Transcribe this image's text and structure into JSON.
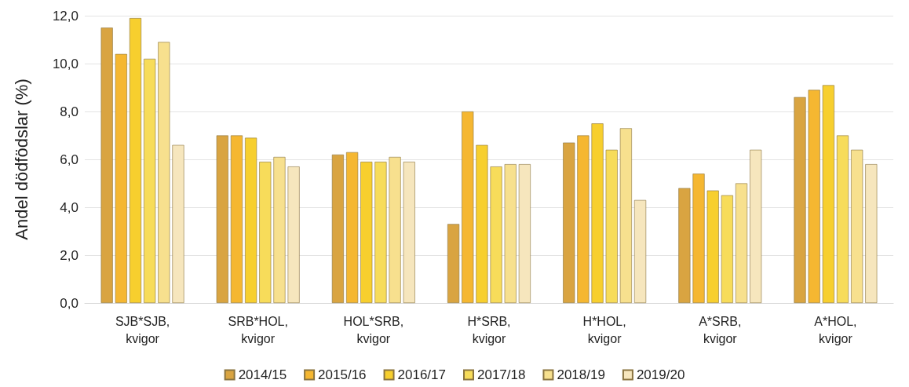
{
  "chart_data": {
    "type": "bar",
    "ylabel": "Andel dödfödslar (%)",
    "categories": [
      "SJB*SJB,\nkvigor",
      "SRB*HOL,\nkvigor",
      "HOL*SRB,\nkvigor",
      "H*SRB,\nkvigor",
      "H*HOL,\nkvigor",
      "A*SRB,\nkvigor",
      "A*HOL,\nkvigor"
    ],
    "series": [
      {
        "name": "2014/15",
        "color": "#d9a441",
        "values": [
          11.5,
          7.0,
          6.2,
          3.3,
          6.7,
          4.8,
          8.6
        ]
      },
      {
        "name": "2015/16",
        "color": "#f5b731",
        "values": [
          10.4,
          7.0,
          6.3,
          8.0,
          7.0,
          5.4,
          8.9
        ]
      },
      {
        "name": "2016/17",
        "color": "#f7cf2e",
        "values": [
          11.9,
          6.9,
          5.9,
          6.6,
          7.5,
          4.7,
          9.1
        ]
      },
      {
        "name": "2017/18",
        "color": "#f7dc5a",
        "values": [
          10.2,
          5.9,
          5.9,
          5.7,
          6.4,
          4.5,
          7.0
        ]
      },
      {
        "name": "2018/19",
        "color": "#f7e08e",
        "values": [
          10.9,
          6.1,
          6.1,
          5.8,
          7.3,
          5.0,
          6.4
        ]
      },
      {
        "name": "2019/20",
        "color": "#f6e6bd",
        "values": [
          6.6,
          5.7,
          5.9,
          5.8,
          4.3,
          6.4,
          5.8
        ]
      }
    ],
    "ylim": [
      0,
      12
    ],
    "yticks": [
      {
        "value": 0,
        "label": "0,0"
      },
      {
        "value": 2,
        "label": "2,0"
      },
      {
        "value": 4,
        "label": "4,0"
      },
      {
        "value": 6,
        "label": "6,0"
      },
      {
        "value": 8,
        "label": "8,0"
      },
      {
        "value": 10,
        "label": "10,0"
      },
      {
        "value": 12,
        "label": "12,0"
      }
    ],
    "grid": "y",
    "legend": "bottom"
  }
}
